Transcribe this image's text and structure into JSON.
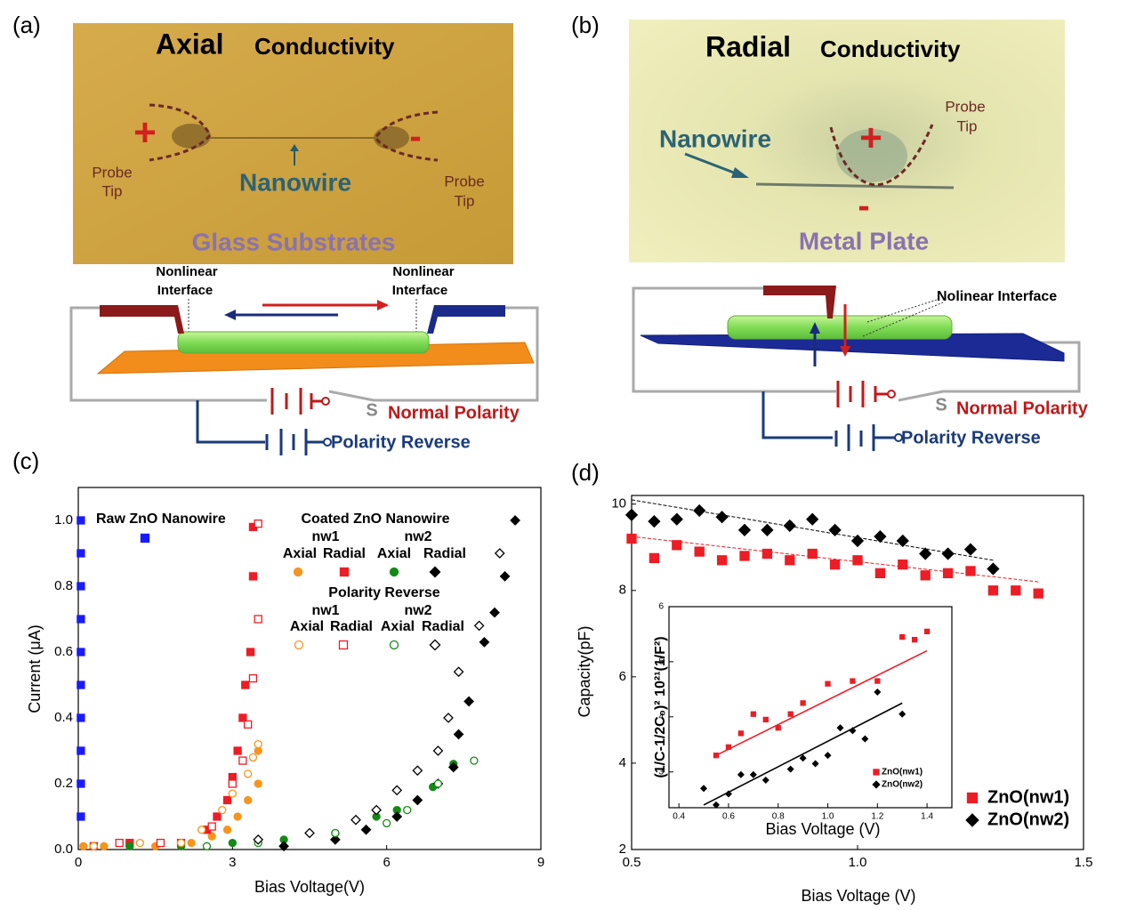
{
  "panel_a": {
    "label": "(a)",
    "title_bold": "Axial",
    "title_rest": "Conductivity",
    "plus": "+",
    "minus": "-",
    "probe_left": [
      "Probe",
      "Tip"
    ],
    "probe_right": [
      "Probe",
      "Tip"
    ],
    "nanowire": "Nanowire",
    "substrate": "Glass Substrates",
    "interface_left": [
      "Nonlinear",
      "Interface"
    ],
    "interface_right": [
      "Nonlinear",
      "Interface"
    ],
    "switch": "S",
    "normal": "Normal Polarity",
    "reverse": "Polarity Reverse"
  },
  "panel_b": {
    "label": "(b)",
    "title_bold": "Radial",
    "title_rest": "Conductivity",
    "plus": "+",
    "minus": "-",
    "probe": [
      "Probe",
      "Tip"
    ],
    "nanowire": "Nanowire",
    "substrate": "Metal Plate",
    "interface": "Nolinear Interface",
    "switch": "S",
    "normal": "Normal Polarity",
    "reverse": "Polarity Reverse"
  },
  "chart_data": [
    {
      "type": "scatter",
      "label": "(c)",
      "xlabel": "Bias Voltage(V)",
      "ylabel": "Current (μA)",
      "xlim": [
        0,
        9
      ],
      "xticks": [
        0,
        3,
        6,
        9
      ],
      "ylim": [
        0,
        1.1
      ],
      "yticks": [
        {
          "value": 0,
          "label": "0.0"
        },
        0.2,
        0.4,
        0.6,
        0.8,
        {
          "value": 1,
          "label": "1.0"
        }
      ],
      "annotations": [
        "Coated ZnO Nanowire",
        "nw1",
        "nw2",
        "Polarity Reverse",
        "nw1",
        "nw2"
      ],
      "series": [
        {
          "name": "Raw ZnO Nanowire",
          "color": "#1a1aff",
          "marker": "square",
          "filled": true,
          "x": [
            0.05,
            0.05,
            0.05,
            0.05,
            0.05,
            0.05,
            0.05,
            0.05,
            0.05,
            0.05
          ],
          "values": [
            0.1,
            0.2,
            0.3,
            0.4,
            0.5,
            0.6,
            0.7,
            0.8,
            0.9,
            1.0
          ]
        },
        {
          "name": "Axial",
          "color": "#f7941d",
          "marker": "circle",
          "filled": true,
          "x": [
            0.1,
            0.5,
            1.5,
            2.2,
            2.6,
            2.9,
            3.1,
            3.3,
            3.5,
            3.5
          ],
          "values": [
            0.01,
            0.01,
            0.01,
            0.02,
            0.04,
            0.06,
            0.1,
            0.15,
            0.2,
            0.3
          ]
        },
        {
          "name": "Radial",
          "color": "#ee1c24",
          "marker": "square",
          "filled": true,
          "x": [
            0.3,
            1.0,
            2.0,
            2.5,
            2.7,
            2.9,
            3.0,
            3.1,
            3.2,
            3.25,
            3.35,
            3.4,
            3.4
          ],
          "values": [
            0.01,
            0.02,
            0.02,
            0.06,
            0.1,
            0.15,
            0.22,
            0.3,
            0.4,
            0.5,
            0.6,
            0.83,
            0.98
          ]
        },
        {
          "name": "Axial",
          "color": "#138a13",
          "marker": "circle",
          "filled": true,
          "x": [
            1.0,
            2.0,
            3.0,
            4.0,
            5.0,
            5.8,
            6.2,
            6.9,
            7.3
          ],
          "values": [
            0.01,
            0.01,
            0.02,
            0.03,
            0.05,
            0.1,
            0.12,
            0.19,
            0.26
          ]
        },
        {
          "name": "Radial",
          "color": "#000000",
          "marker": "diamond",
          "filled": true,
          "x": [
            4.0,
            5.0,
            5.6,
            6.2,
            6.6,
            7.0,
            7.3,
            7.4,
            7.6,
            7.9,
            8.1,
            8.3,
            8.5
          ],
          "values": [
            0.01,
            0.03,
            0.06,
            0.1,
            0.15,
            0.2,
            0.25,
            0.35,
            0.45,
            0.63,
            0.72,
            0.83,
            1.0
          ]
        },
        {
          "name": "Axial",
          "color": "#f7941d",
          "marker": "circle",
          "filled": false,
          "x": [
            0.3,
            1.2,
            2.0,
            2.4,
            2.8,
            3.0,
            3.3,
            3.4,
            3.5
          ],
          "values": [
            0.01,
            0.02,
            0.02,
            0.06,
            0.12,
            0.17,
            0.23,
            0.28,
            0.32
          ]
        },
        {
          "name": "Radial",
          "color": "#ee1c24",
          "marker": "square",
          "filled": false,
          "x": [
            0.8,
            1.6,
            2.6,
            3.0,
            3.2,
            3.3,
            3.4,
            3.5,
            3.5
          ],
          "values": [
            0.02,
            0.02,
            0.07,
            0.2,
            0.27,
            0.38,
            0.52,
            0.7,
            0.99
          ]
        },
        {
          "name": "Axial",
          "color": "#138a13",
          "marker": "circle",
          "filled": false,
          "x": [
            2.5,
            3.5,
            5.0,
            6.0,
            6.4,
            7.0,
            7.7
          ],
          "values": [
            0.01,
            0.02,
            0.05,
            0.08,
            0.12,
            0.2,
            0.27
          ]
        },
        {
          "name": "Radial",
          "color": "#000000",
          "marker": "diamond",
          "filled": false,
          "x": [
            3.5,
            4.5,
            5.4,
            5.8,
            6.2,
            6.6,
            7.0,
            7.2,
            7.4,
            7.8,
            8.2
          ],
          "values": [
            0.03,
            0.05,
            0.09,
            0.12,
            0.18,
            0.24,
            0.3,
            0.4,
            0.54,
            0.68,
            0.9
          ]
        }
      ]
    },
    {
      "type": "scatter",
      "label": "(d)",
      "xlabel": "Bias Voltage (V)",
      "ylabel": "Capacity(pF)",
      "xlim": [
        0.5,
        1.5
      ],
      "xticks": [
        0.5,
        {
          "value": 1,
          "label": "1.0"
        },
        1.5
      ],
      "ylim": [
        2,
        10.2
      ],
      "yticks": [
        2,
        4,
        6,
        8,
        10
      ],
      "series": [
        {
          "name": "ZnO(nw1)",
          "color": "#ee1c24",
          "marker": "square",
          "filled": true,
          "x": [
            0.5,
            0.55,
            0.6,
            0.65,
            0.7,
            0.75,
            0.8,
            0.85,
            0.9,
            0.95,
            1.0,
            1.05,
            1.1,
            1.15,
            1.2,
            1.25,
            1.3,
            1.35,
            1.4
          ],
          "values": [
            9.2,
            8.75,
            9.05,
            8.9,
            8.7,
            8.8,
            8.85,
            8.7,
            8.85,
            8.6,
            8.7,
            8.4,
            8.6,
            8.35,
            8.4,
            8.45,
            8.0,
            8.0,
            7.93
          ]
        },
        {
          "name": "ZnO(nw2)",
          "color": "#000000",
          "marker": "diamond",
          "filled": true,
          "x": [
            0.5,
            0.55,
            0.6,
            0.65,
            0.7,
            0.75,
            0.8,
            0.85,
            0.9,
            0.95,
            1.0,
            1.05,
            1.1,
            1.15,
            1.2,
            1.25,
            1.3
          ],
          "values": [
            9.75,
            9.6,
            9.65,
            9.85,
            9.7,
            9.4,
            9.4,
            9.5,
            9.65,
            9.4,
            9.15,
            9.25,
            9.15,
            8.85,
            8.85,
            8.95,
            8.5
          ]
        }
      ],
      "fits": [
        {
          "color": "#ee1c24",
          "x": [
            0.5,
            1.4
          ],
          "values": [
            9.25,
            8.2
          ]
        },
        {
          "color": "#000000",
          "x": [
            0.5,
            1.3
          ],
          "values": [
            10.1,
            8.7
          ]
        }
      ]
    },
    {
      "type": "scatter",
      "xlabel": "Bias Voltage (V)",
      "ylabel": "(1/C-1/2C₀)² 10²¹(1/F²)",
      "xlim": [
        0.36,
        1.5
      ],
      "xticks": [
        0.4,
        0.6,
        0.8,
        {
          "value": 1,
          "label": "1.0"
        },
        1.2,
        1.4
      ],
      "ylim": [
        2.35,
        6
      ],
      "yticks": [
        3,
        4,
        5,
        6
      ],
      "series": [
        {
          "name": "ZnO(nw1)",
          "color": "#ee1c24",
          "marker": "square",
          "filled": true,
          "x": [
            0.55,
            0.6,
            0.65,
            0.7,
            0.75,
            0.8,
            0.85,
            0.9,
            1.0,
            1.1,
            1.2,
            1.3,
            1.35,
            1.4
          ],
          "values": [
            3.3,
            3.45,
            3.7,
            4.05,
            3.95,
            3.8,
            4.05,
            4.25,
            4.6,
            4.65,
            4.65,
            5.45,
            5.4,
            5.55
          ]
        },
        {
          "name": "ZnO(nw2)",
          "color": "#000000",
          "marker": "diamond",
          "filled": true,
          "x": [
            0.5,
            0.55,
            0.6,
            0.65,
            0.7,
            0.75,
            0.85,
            0.9,
            0.95,
            1.0,
            1.05,
            1.1,
            1.15,
            1.2,
            1.3
          ],
          "values": [
            2.7,
            2.4,
            2.6,
            2.95,
            2.95,
            2.85,
            3.05,
            3.25,
            3.15,
            3.3,
            3.8,
            3.75,
            3.6,
            4.45,
            4.05
          ]
        }
      ],
      "fits": [
        {
          "color": "#ee1c24",
          "x": [
            0.55,
            1.4
          ],
          "values": [
            3.3,
            5.2
          ]
        },
        {
          "color": "#000000",
          "x": [
            0.5,
            1.3
          ],
          "values": [
            2.4,
            4.25
          ]
        }
      ]
    }
  ]
}
